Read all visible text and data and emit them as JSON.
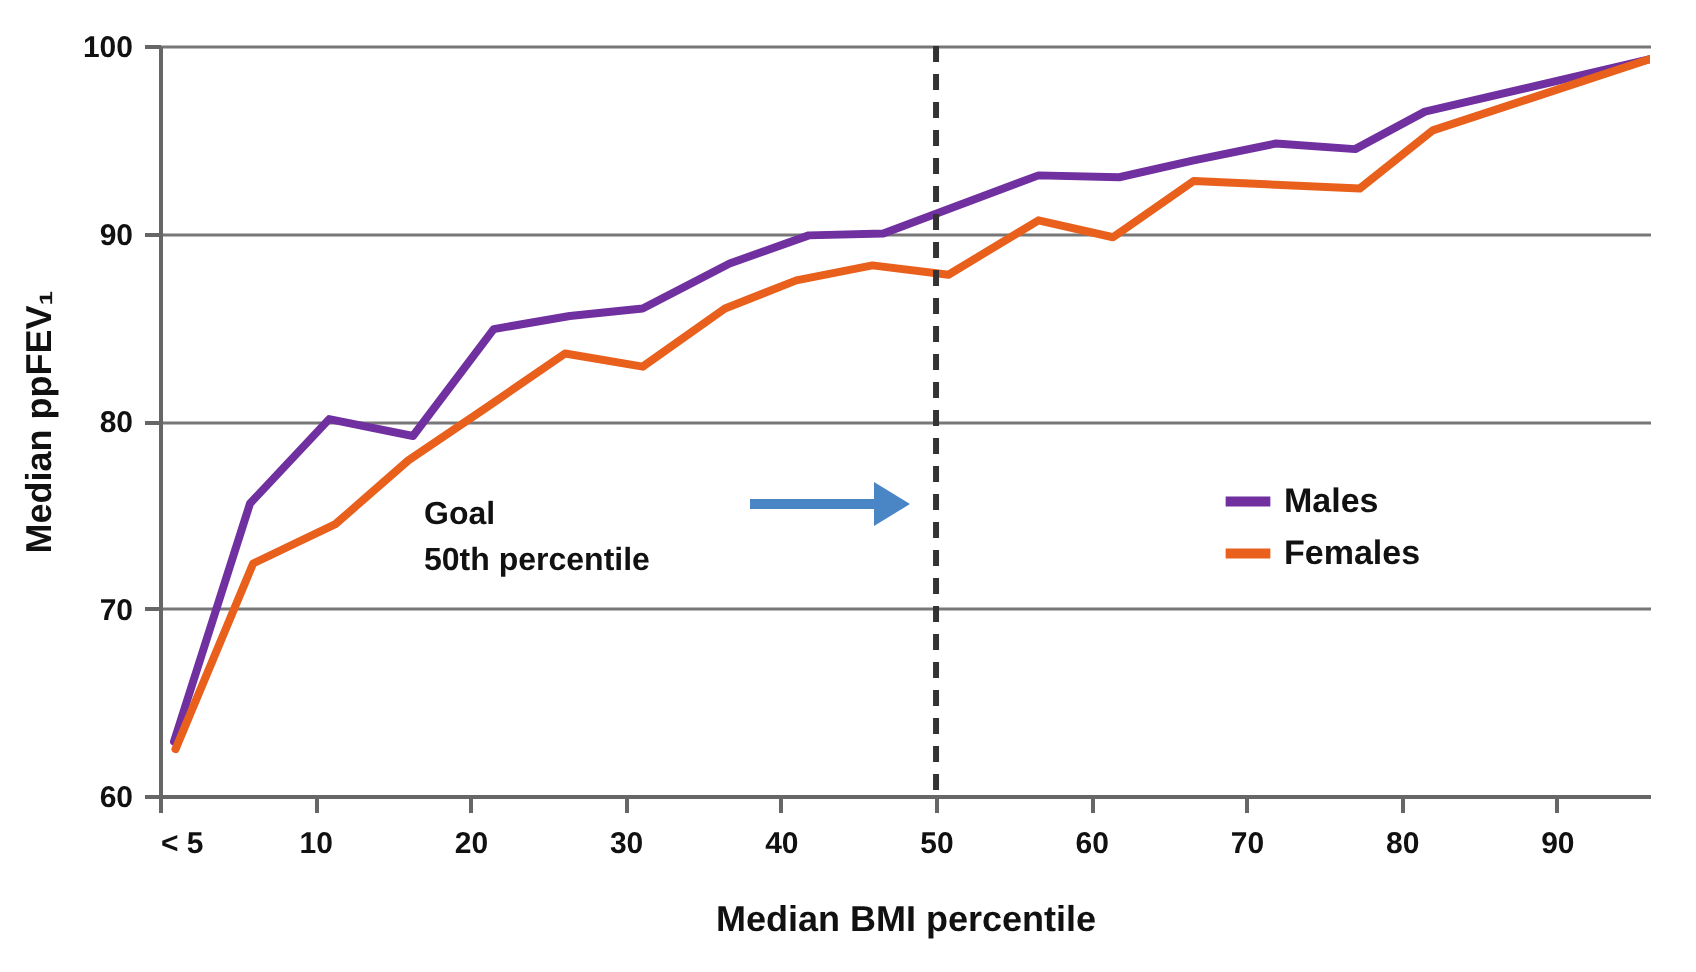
{
  "chart_data": {
    "type": "line",
    "xlabel": "Median BMI percentile",
    "ylabel": "Median ppFEV₁",
    "xlim": [
      0,
      96
    ],
    "xticks": [
      {
        "value": 0,
        "label": "< 5"
      },
      10,
      20,
      30,
      40,
      50,
      60,
      70,
      80,
      90
    ],
    "ylim": [
      60,
      100
    ],
    "yticks": [
      60,
      70,
      80,
      90,
      100
    ],
    "grid": "y",
    "legend": "right",
    "line_style": "solid",
    "marker": "none",
    "series": [
      {
        "name": "Males",
        "color": "#7030a0",
        "x": [
          0.9,
          5.8,
          10.9,
          16.3,
          21.5,
          26.4,
          31.1,
          36.7,
          41.8,
          46.6,
          56.6,
          61.8,
          66.6,
          71.9,
          77,
          81.5,
          96
        ],
        "values": [
          62.9,
          75.6,
          80.1,
          79.2,
          84.9,
          85.6,
          86.0,
          88.4,
          89.9,
          90.0,
          93.1,
          93.0,
          93.9,
          94.8,
          94.5,
          96.5,
          99.3
        ]
      },
      {
        "name": "Females",
        "color": "#e8601c",
        "x": [
          1.0,
          6.0,
          11.3,
          16.0,
          21.0,
          26.1,
          31.1,
          36.4,
          41.0,
          45.9,
          50.8,
          56.6,
          61.4,
          66.6,
          77.3,
          82.0,
          96
        ],
        "values": [
          62.5,
          72.4,
          74.5,
          77.9,
          80.7,
          83.6,
          82.9,
          86.0,
          87.5,
          88.3,
          87.8,
          90.7,
          89.8,
          92.8,
          92.4,
          95.5,
          99.3
        ]
      }
    ],
    "ref_lines": [
      {
        "axis": "x",
        "value": 50,
        "color": "#333333",
        "line_style": "dashed"
      }
    ],
    "annotations": [
      "Goal\n50th percentile"
    ]
  }
}
